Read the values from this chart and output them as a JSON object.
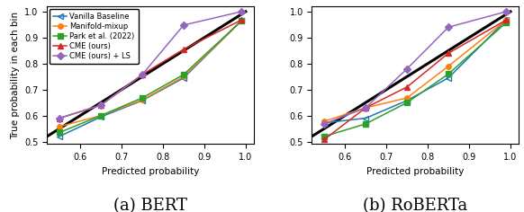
{
  "bert": {
    "x": [
      0.55,
      0.65,
      0.75,
      0.85,
      0.99
    ],
    "vanilla": [
      0.52,
      0.595,
      0.658,
      0.745,
      0.965
    ],
    "manifold": [
      0.558,
      0.6,
      0.66,
      0.75,
      0.965
    ],
    "park": [
      0.535,
      0.6,
      0.668,
      0.758,
      0.965
    ],
    "cme": [
      0.59,
      0.64,
      0.758,
      0.855,
      0.968
    ],
    "cme_ls": [
      0.59,
      0.64,
      0.758,
      0.948,
      1.0
    ]
  },
  "roberta": {
    "x": [
      0.55,
      0.65,
      0.75,
      0.85,
      0.99
    ],
    "vanilla": [
      0.572,
      0.59,
      0.658,
      0.745,
      0.968
    ],
    "manifold": [
      0.578,
      0.63,
      0.668,
      0.79,
      0.968
    ],
    "park": [
      0.52,
      0.568,
      0.65,
      0.76,
      0.958
    ],
    "cme": [
      0.508,
      0.63,
      0.71,
      0.84,
      0.968
    ],
    "cme_ls": [
      0.568,
      0.63,
      0.78,
      0.94,
      1.0
    ]
  },
  "colors": {
    "vanilla": "#1f77b4",
    "manifold": "#ff7f0e",
    "park": "#2ca02c",
    "cme": "#d62728",
    "cme_ls": "#9467bd"
  },
  "labels": {
    "vanilla": "Vanilla Baseline",
    "manifold": "Manifold-mixup",
    "park": "Park et al. (2022)",
    "cme": "CME (ours)",
    "cme_ls": "CME (ours) + LS"
  },
  "xlim": [
    0.52,
    1.02
  ],
  "ylim": [
    0.49,
    1.02
  ],
  "xticks": [
    0.6,
    0.7,
    0.8,
    0.9,
    1.0
  ],
  "yticks": [
    0.5,
    0.6,
    0.7,
    0.8,
    0.9,
    1.0
  ],
  "xlabel": "Predicted probability",
  "ylabel": "True probability in each bin",
  "subtitle_bert": "(a) BERT",
  "subtitle_roberta": "(b) RoBERTa"
}
